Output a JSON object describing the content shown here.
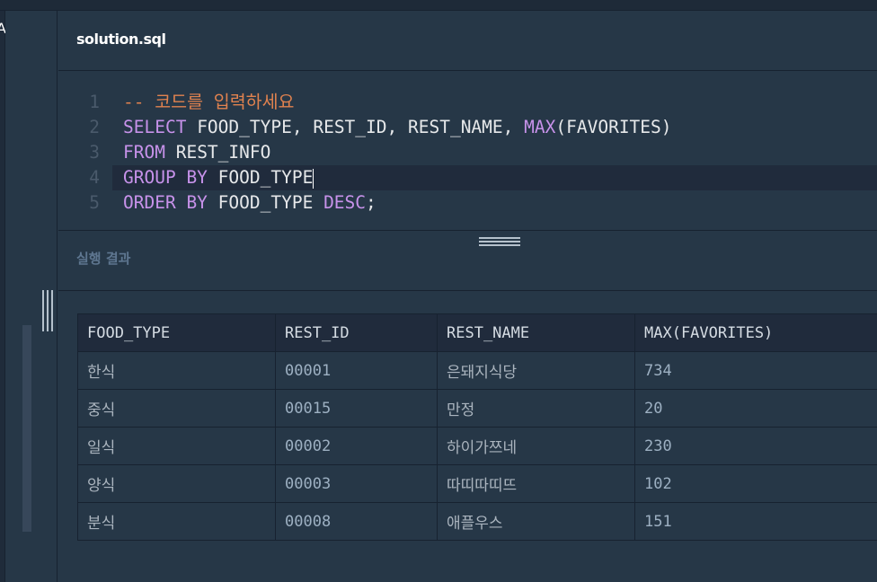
{
  "left_panel": {
    "partial_label": "A"
  },
  "editor": {
    "filename": "solution.sql",
    "lines": [
      {
        "n": "1",
        "comment": "-- 코드를 입력하세요"
      },
      {
        "n": "2",
        "kw1": "SELECT",
        "t1": " FOOD_TYPE, REST_ID, REST_NAME, ",
        "kw2": "MAX",
        "t2": "(FAVORITES)"
      },
      {
        "n": "3",
        "kw1": "FROM",
        "t1": " REST_INFO"
      },
      {
        "n": "4",
        "kw1": "GROUP BY",
        "t1": " FOOD_TYPE"
      },
      {
        "n": "5",
        "kw1": "ORDER BY",
        "t1": " FOOD_TYPE ",
        "kw2": "DESC",
        "t2": ";"
      }
    ]
  },
  "results": {
    "title": "실행 결과",
    "columns": [
      "FOOD_TYPE",
      "REST_ID",
      "REST_NAME",
      "MAX(FAVORITES)"
    ],
    "rows": [
      [
        "한식",
        "00001",
        "은돼지식당",
        "734"
      ],
      [
        "중식",
        "00015",
        "만정",
        "20"
      ],
      [
        "일식",
        "00002",
        "하이가쯔네",
        "230"
      ],
      [
        "양식",
        "00003",
        "따띠따띠뜨",
        "102"
      ],
      [
        "분식",
        "00008",
        "애플우스",
        "151"
      ]
    ]
  },
  "colors": {
    "background": "#263747",
    "keyword": "#c792ea",
    "comment": "#e0824f"
  }
}
